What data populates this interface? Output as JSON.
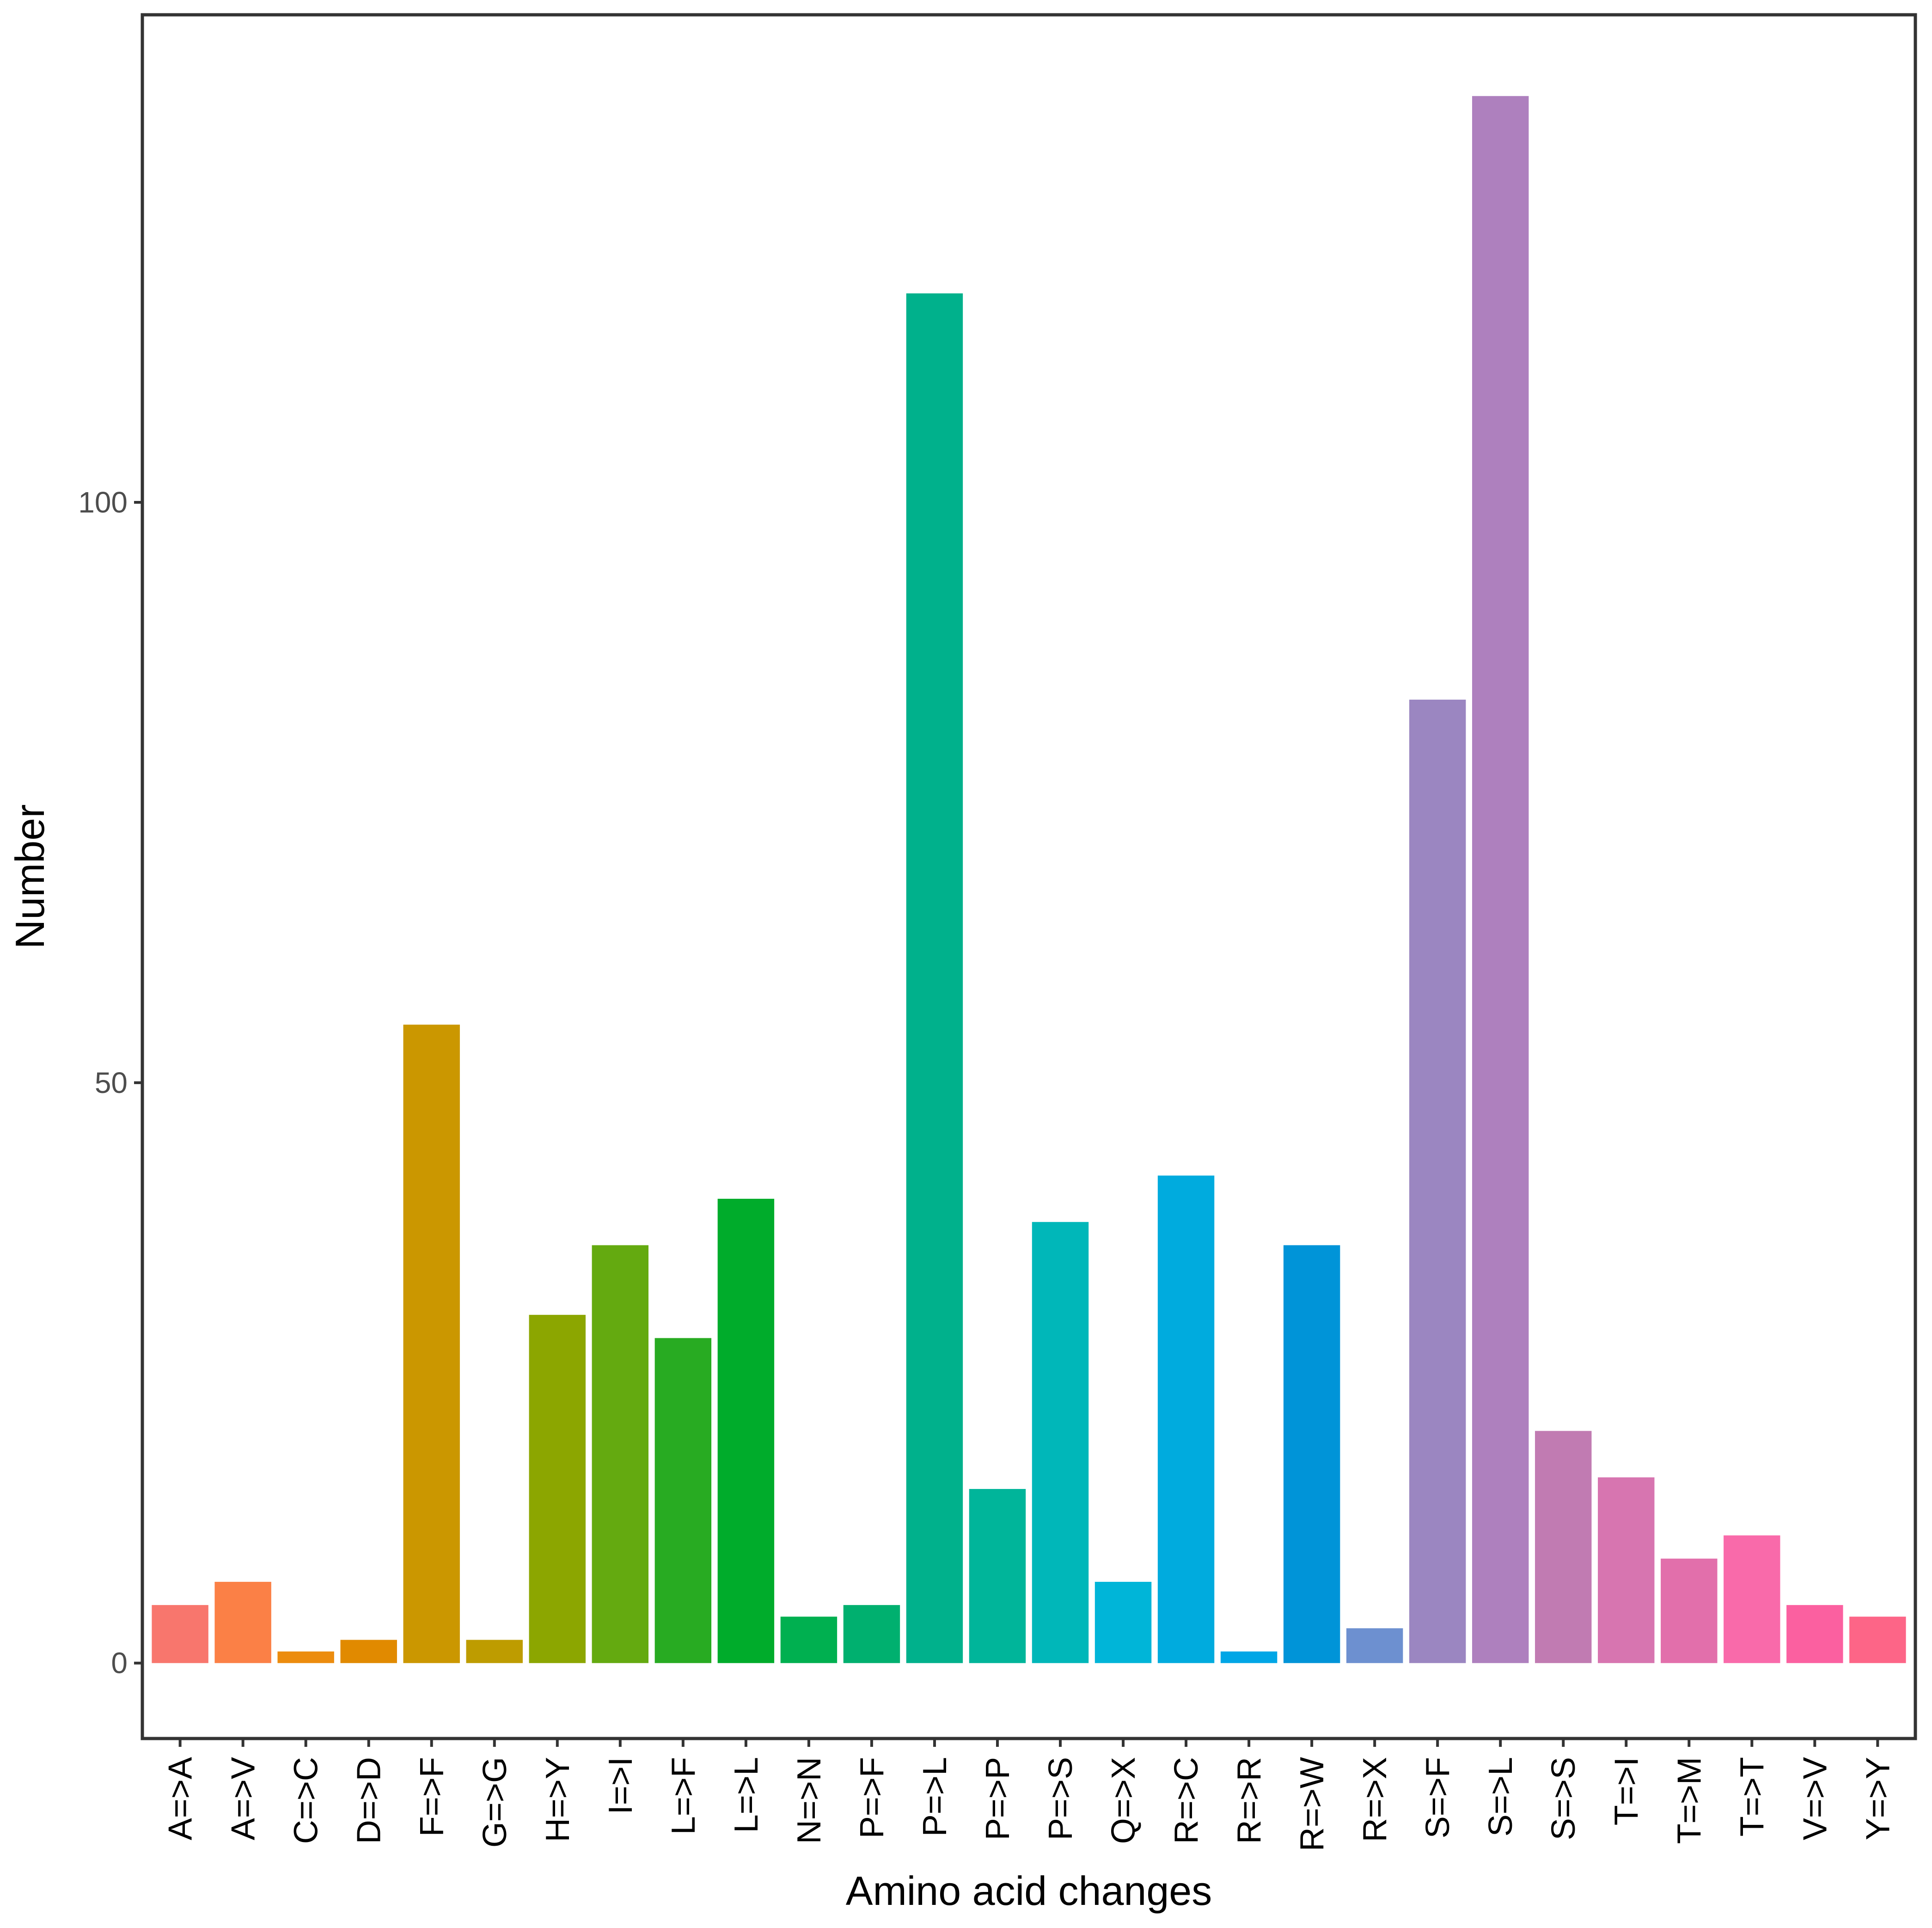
{
  "chart_data": {
    "type": "bar",
    "title": "",
    "xlabel": "Amino acid changes",
    "ylabel": "Number",
    "ylim": [
      -6.5,
      142
    ],
    "yticks": [
      0,
      50,
      100
    ],
    "grid": false,
    "legend": "none",
    "categories": [
      "A=>A",
      "A=>V",
      "C=>C",
      "D=>D",
      "F=>F",
      "G=>G",
      "H=>Y",
      "I=>I",
      "L=>F",
      "L=>L",
      "N=>N",
      "P=>F",
      "P=>L",
      "P=>P",
      "P=>S",
      "Q=>X",
      "R=>C",
      "R=>R",
      "R=>W",
      "R=>X",
      "S=>F",
      "S=>L",
      "S=>S",
      "T=>I",
      "T=>M",
      "T=>T",
      "V=>V",
      "Y=>Y"
    ],
    "values": [
      5,
      7,
      1,
      2,
      55,
      2,
      30,
      36,
      28,
      40,
      4,
      5,
      118,
      15,
      38,
      7,
      42,
      1,
      36,
      3,
      83,
      135,
      20,
      16,
      9,
      11,
      5,
      4
    ],
    "colors": [
      "#F8766D",
      "#FB8046",
      "#EC8C0E",
      "#E18A00",
      "#CB9700",
      "#BE9C00",
      "#8CA600",
      "#64AA10",
      "#28AB22",
      "#00AC2B",
      "#00B050",
      "#00B06F",
      "#00B18C",
      "#00B59A",
      "#00B7B9",
      "#00B5D8",
      "#00ABDE",
      "#00A6E6",
      "#0094D8",
      "#6D90D0",
      "#9B86C1",
      "#AE80BE",
      "#C17BB2",
      "#D775B0",
      "#E26FAB",
      "#F96AAA",
      "#FB60A0",
      "#FD6587"
    ]
  }
}
